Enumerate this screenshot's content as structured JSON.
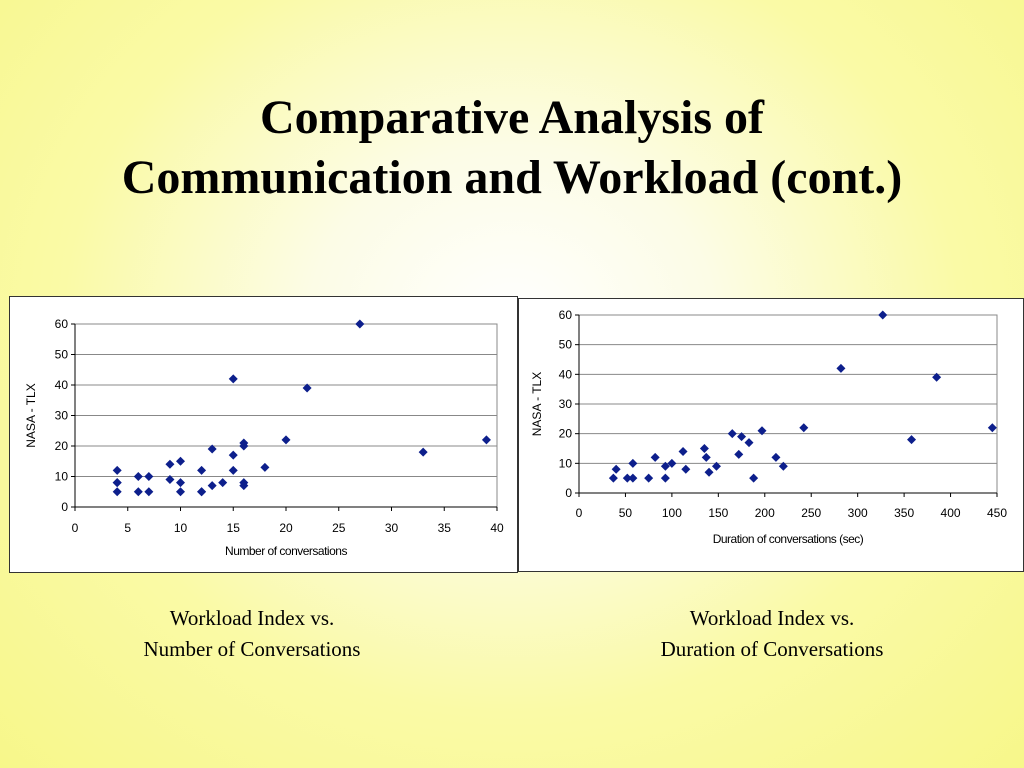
{
  "slide": {
    "title_line1": "Comparative Analysis of",
    "title_line2": "Communication and Workload (cont.)"
  },
  "captions": {
    "left_line1": "Workload Index vs.",
    "left_line2": "Number of Conversations",
    "right_line1": "Workload Index vs.",
    "right_line2": "Duration of Conversations"
  },
  "colors": {
    "marker": "#0d1f8c",
    "gridline": "#888888",
    "background_highlight": "#ffffff",
    "background_edge": "#f7f78a"
  },
  "chart_data": [
    {
      "type": "scatter",
      "title": "",
      "xlabel": "Number of conversations",
      "ylabel": "NASA - TLX",
      "xlim": [
        0,
        40
      ],
      "ylim": [
        0,
        60
      ],
      "xticks": [
        0,
        5,
        10,
        15,
        20,
        25,
        30,
        35,
        40
      ],
      "yticks": [
        0,
        10,
        20,
        30,
        40,
        50,
        60
      ],
      "grid": "horizontal",
      "legend": "none",
      "marker": "diamond",
      "x": [
        4,
        4,
        4,
        4,
        6,
        6,
        7,
        7,
        9,
        9,
        10,
        10,
        10,
        12,
        12,
        12,
        13,
        13,
        14,
        15,
        15,
        15,
        16,
        16,
        16,
        16,
        18,
        20,
        22,
        27,
        33,
        39
      ],
      "y": [
        12,
        8,
        8,
        5,
        10,
        5,
        10,
        5,
        14,
        9,
        15,
        8,
        5,
        12,
        5,
        5,
        19,
        7,
        8,
        42,
        17,
        12,
        21,
        20,
        8,
        7,
        13,
        22,
        39,
        60,
        18,
        22
      ]
    },
    {
      "type": "scatter",
      "title": "",
      "xlabel": "Duration of conversations (sec)",
      "ylabel": "NASA - TLX",
      "xlim": [
        0,
        450
      ],
      "ylim": [
        0,
        60
      ],
      "xticks": [
        0,
        50,
        100,
        150,
        200,
        250,
        300,
        350,
        400,
        450
      ],
      "yticks": [
        0,
        10,
        20,
        30,
        40,
        50,
        60
      ],
      "grid": "horizontal",
      "legend": "none",
      "marker": "diamond",
      "x": [
        37,
        40,
        52,
        58,
        58,
        75,
        82,
        93,
        93,
        100,
        112,
        115,
        135,
        137,
        140,
        148,
        165,
        172,
        175,
        183,
        188,
        197,
        212,
        220,
        242,
        282,
        327,
        358,
        385,
        445
      ],
      "y": [
        5,
        8,
        5,
        5,
        10,
        5,
        12,
        9,
        5,
        10,
        14,
        8,
        15,
        12,
        7,
        9,
        20,
        13,
        19,
        17,
        5,
        21,
        12,
        9,
        22,
        42,
        60,
        18,
        39,
        22
      ]
    }
  ]
}
